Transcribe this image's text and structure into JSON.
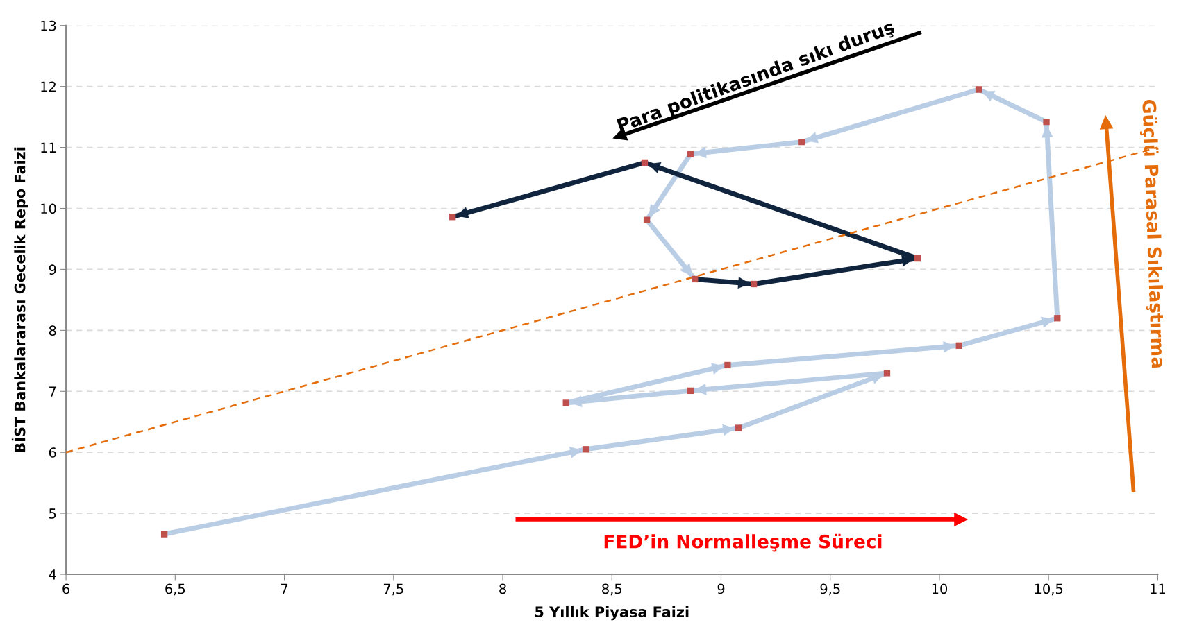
{
  "chart_data": {
    "type": "line",
    "xlabel": "5 Yıllık Piyasa Faizi",
    "ylabel": "BİST Bankalararası Gecelik Repo Faizi",
    "xlim": [
      6,
      11
    ],
    "xticks": [
      6,
      {
        "value": 6.5,
        "label": "6,5"
      },
      7,
      {
        "value": 7.5,
        "label": "7,5"
      },
      8,
      {
        "value": 8.5,
        "label": "8,5"
      },
      9,
      {
        "value": 9.5,
        "label": "9,5"
      },
      10,
      {
        "value": 10.5,
        "label": "10,5"
      },
      11
    ],
    "ylim": [
      4,
      13
    ],
    "yticks": [
      4,
      5,
      6,
      7,
      8,
      9,
      10,
      11,
      12,
      13
    ],
    "grid": "y",
    "series": [
      {
        "color": "#b9cde5",
        "x": [
          6.45,
          8.38,
          9.08,
          9.76,
          8.86,
          8.29,
          9.03,
          10.09,
          10.54,
          10.49,
          10.18,
          9.37,
          8.86,
          8.66,
          8.88
        ],
        "values": [
          4.66,
          6.05,
          6.4,
          7.3,
          7.01,
          6.81,
          7.43,
          7.75,
          8.2,
          11.42,
          11.95,
          11.09,
          10.89,
          9.81,
          8.84
        ]
      },
      {
        "color": "#10243e",
        "x": [
          8.88,
          9.15,
          9.9,
          8.65,
          7.77
        ],
        "values": [
          8.84,
          8.76,
          9.18,
          10.75,
          9.86
        ]
      },
      {
        "color": "#e46c0a",
        "line_style": "dashed",
        "x": [
          6,
          11
        ],
        "values": [
          6,
          11
        ]
      },
      {
        "type": "scatter",
        "marker": "square",
        "color": "#c0504d",
        "x": [
          6.45,
          8.38,
          9.08,
          9.76,
          8.86,
          8.29,
          9.03,
          10.09,
          10.54,
          10.49,
          10.18,
          9.37,
          8.86,
          8.66,
          8.88,
          9.15,
          9.9,
          8.65,
          7.77
        ],
        "values": [
          4.66,
          6.05,
          6.4,
          7.3,
          7.01,
          6.81,
          7.43,
          7.75,
          8.2,
          11.42,
          11.95,
          11.09,
          10.89,
          9.81,
          8.84,
          8.76,
          9.18,
          10.75,
          9.86
        ]
      }
    ],
    "annotations": [
      "Para politikasında sıkı duruş",
      "FED’in Normalleşme Süreci",
      "Güçlü Parasal Sıkılaştırma"
    ]
  }
}
